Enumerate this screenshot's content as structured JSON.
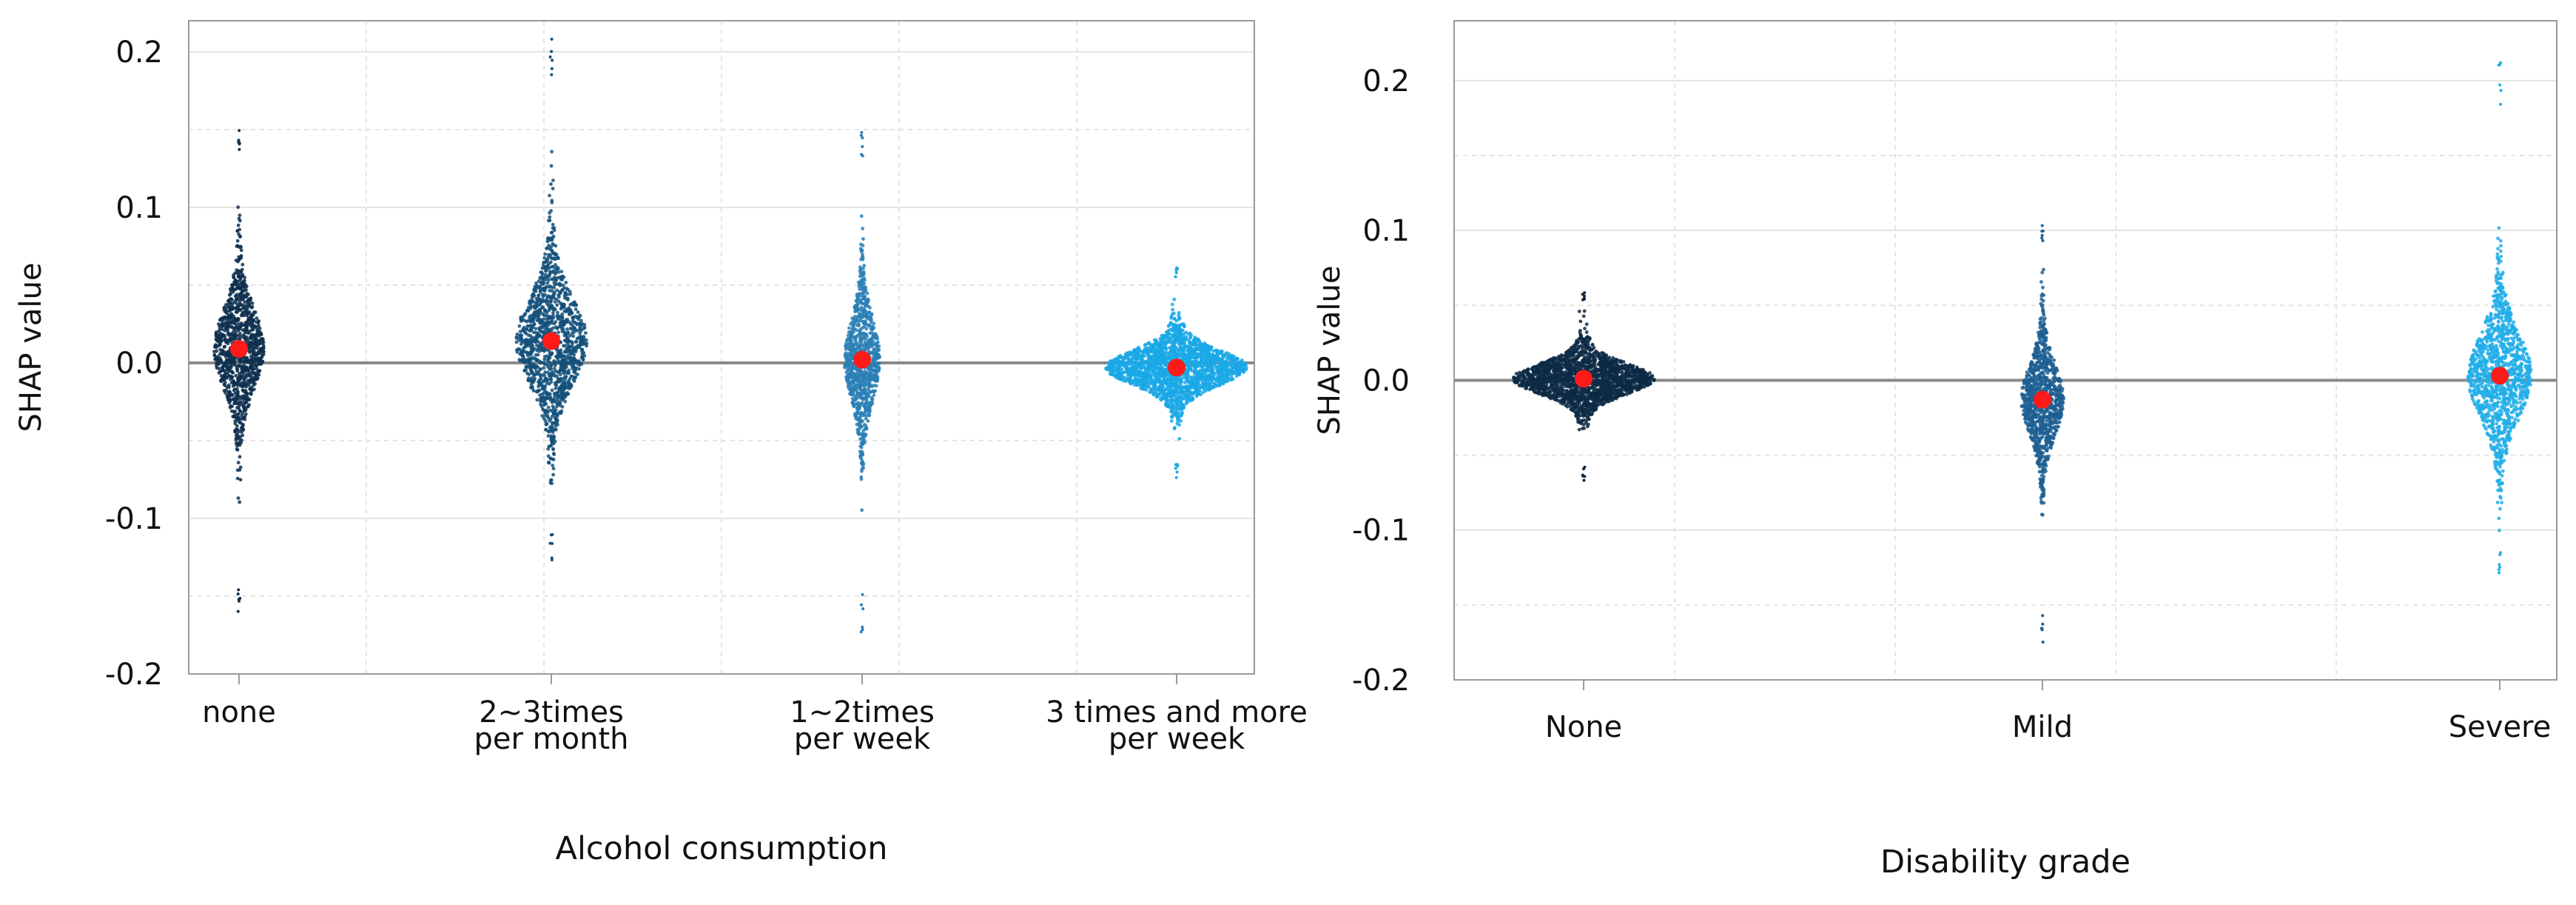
{
  "chart_data": [
    {
      "type": "scatter",
      "subtype": "shap-dependence-swarm",
      "title": "",
      "xlabel": "Alcohol consumption",
      "ylabel": "SHAP value",
      "ylim": [
        -0.2,
        0.22
      ],
      "yticks": [
        "0.2",
        "0.1",
        "0.0",
        "-0.1",
        "-0.2"
      ],
      "ytick_values": [
        0.2,
        0.1,
        0.0,
        -0.1,
        -0.2
      ],
      "grid": true,
      "zero_line": true,
      "categories": [
        {
          "label_lines": [
            "none"
          ],
          "mean": 0.009,
          "min": -0.165,
          "max": 0.155,
          "color": "#0e2f4f",
          "density": 0.35
        },
        {
          "label_lines": [
            "2~3times",
            "per month"
          ],
          "mean": 0.014,
          "min": -0.13,
          "max": 0.215,
          "color": "#13507a",
          "density": 0.5
        },
        {
          "label_lines": [
            "1~2times",
            "per week"
          ],
          "mean": 0.002,
          "min": -0.175,
          "max": 0.148,
          "color": "#2a7fb5",
          "density": 0.25
        },
        {
          "label_lines": [
            "3 times and more",
            "per week"
          ],
          "mean": -0.003,
          "min": -0.075,
          "max": 0.065,
          "color": "#1aa8e6",
          "density": 1.0
        }
      ]
    },
    {
      "type": "scatter",
      "subtype": "shap-dependence-swarm",
      "title": "",
      "xlabel": "Disability grade",
      "ylabel": "SHAP value",
      "ylim": [
        -0.2,
        0.24
      ],
      "yticks": [
        "0.2",
        "0.1",
        "0.0",
        "-0.1",
        "-0.2"
      ],
      "ytick_values": [
        0.2,
        0.1,
        0.0,
        -0.1,
        -0.2
      ],
      "grid": true,
      "zero_line": true,
      "categories": [
        {
          "label_lines": [
            "None"
          ],
          "mean": 0.001,
          "min": -0.068,
          "max": 0.06,
          "color": "#0d2a45",
          "density": 1.0
        },
        {
          "label_lines": [
            "Mild"
          ],
          "mean": -0.013,
          "min": -0.18,
          "max": 0.11,
          "color": "#1d5f93",
          "density": 0.3
        },
        {
          "label_lines": [
            "Severe"
          ],
          "mean": 0.003,
          "min": -0.13,
          "max": 0.215,
          "color": "#22aee8",
          "density": 0.45
        }
      ]
    }
  ]
}
